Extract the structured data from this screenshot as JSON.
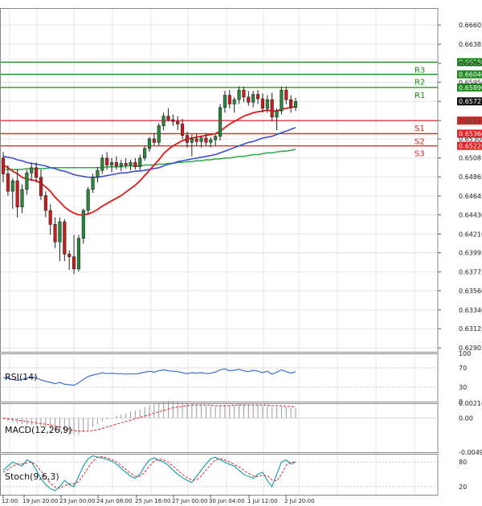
{
  "chart_data": {
    "type": "candlestick",
    "price_axis_ticks": [
      "0.66605",
      "0.66385",
      "0.66165",
      "0.65950",
      "0.65730",
      "0.65510",
      "0.65300",
      "0.65081",
      "0.64865",
      "0.64645",
      "0.64430",
      "0.64210",
      "0.63995",
      "0.63775",
      "0.63560",
      "0.63340",
      "0.63125",
      "0.62905"
    ],
    "ylim": [
      0.6286,
      0.668
    ],
    "time_axis_labels": [
      "12:00",
      "19 Jun 20:00",
      "23 Jun 00:00",
      "24 Jun 08:00",
      "25 Jun 16:00",
      "27 Jun 00:00",
      "30 Jun 04:00",
      "1 Jul 12:00",
      "2 Jul 20:00"
    ],
    "current_price": "0.65727",
    "levels": [
      {
        "name": "R3",
        "price": 0.6618,
        "label": "0.66180",
        "color": "#1a8a1a"
      },
      {
        "name": "R2",
        "price": 0.6604,
        "label": "0.66040",
        "color": "#1a8a1a"
      },
      {
        "name": "R1",
        "price": 0.6589,
        "label": "0.65890",
        "color": "#1a8a1a"
      },
      {
        "name": "S1",
        "price": 0.6551,
        "label": "0.65510",
        "color": "#e02020"
      },
      {
        "name": "S2",
        "price": 0.6536,
        "label": "0.65360",
        "color": "#e02020"
      },
      {
        "name": "S3",
        "price": 0.6522,
        "label": "0.65220",
        "color": "#e02020"
      }
    ],
    "candles": [
      [
        0.6508,
        0.6515,
        0.648,
        0.649
      ],
      [
        0.649,
        0.65,
        0.6465,
        0.647
      ],
      [
        0.647,
        0.6485,
        0.645,
        0.6482
      ],
      [
        0.6482,
        0.6495,
        0.644,
        0.6452
      ],
      [
        0.6452,
        0.6478,
        0.6445,
        0.6472
      ],
      [
        0.6472,
        0.6495,
        0.6466,
        0.6491
      ],
      [
        0.6491,
        0.6503,
        0.6482,
        0.6497
      ],
      [
        0.6497,
        0.6503,
        0.648,
        0.6486
      ],
      [
        0.6486,
        0.6495,
        0.646,
        0.6465
      ],
      [
        0.6465,
        0.647,
        0.644,
        0.6448
      ],
      [
        0.6448,
        0.6455,
        0.642,
        0.6432
      ],
      [
        0.6432,
        0.644,
        0.6405,
        0.6412
      ],
      [
        0.6412,
        0.644,
        0.639,
        0.6435
      ],
      [
        0.6435,
        0.6438,
        0.639,
        0.6398
      ],
      [
        0.6398,
        0.6402,
        0.638,
        0.6395
      ],
      [
        0.6395,
        0.642,
        0.6375,
        0.6381
      ],
      [
        0.6381,
        0.642,
        0.6378,
        0.6416
      ],
      [
        0.6416,
        0.645,
        0.641,
        0.6448
      ],
      [
        0.6448,
        0.6475,
        0.6444,
        0.6472
      ],
      [
        0.6472,
        0.649,
        0.6468,
        0.6486
      ],
      [
        0.6486,
        0.6498,
        0.648,
        0.6494
      ],
      [
        0.6494,
        0.6512,
        0.649,
        0.6508
      ],
      [
        0.6508,
        0.6515,
        0.6495,
        0.65
      ],
      [
        0.65,
        0.6508,
        0.6492,
        0.6503
      ],
      [
        0.6503,
        0.651,
        0.6495,
        0.6499
      ],
      [
        0.6499,
        0.6506,
        0.6493,
        0.6502
      ],
      [
        0.6502,
        0.6508,
        0.6496,
        0.65
      ],
      [
        0.65,
        0.6506,
        0.6494,
        0.6503
      ],
      [
        0.6503,
        0.6508,
        0.6495,
        0.6498
      ],
      [
        0.6498,
        0.6512,
        0.6494,
        0.6508
      ],
      [
        0.6508,
        0.6522,
        0.6505,
        0.6519
      ],
      [
        0.6519,
        0.6532,
        0.6515,
        0.653
      ],
      [
        0.653,
        0.6537,
        0.6522,
        0.6526
      ],
      [
        0.6526,
        0.6548,
        0.6522,
        0.6545
      ],
      [
        0.6545,
        0.656,
        0.654,
        0.6556
      ],
      [
        0.6556,
        0.6565,
        0.655,
        0.6552
      ],
      [
        0.6552,
        0.6558,
        0.6545,
        0.655
      ],
      [
        0.655,
        0.6556,
        0.654,
        0.6547
      ],
      [
        0.6547,
        0.6553,
        0.653,
        0.6534
      ],
      [
        0.6534,
        0.6538,
        0.652,
        0.6526
      ],
      [
        0.6526,
        0.6535,
        0.651,
        0.653
      ],
      [
        0.653,
        0.6536,
        0.6522,
        0.6527
      ],
      [
        0.6527,
        0.6534,
        0.652,
        0.6531
      ],
      [
        0.6531,
        0.6536,
        0.6522,
        0.6526
      ],
      [
        0.6526,
        0.6532,
        0.652,
        0.6529
      ],
      [
        0.6529,
        0.6535,
        0.6522,
        0.6533
      ],
      [
        0.6533,
        0.657,
        0.6528,
        0.6566
      ],
      [
        0.6566,
        0.6585,
        0.656,
        0.658
      ],
      [
        0.658,
        0.6586,
        0.6565,
        0.657
      ],
      [
        0.657,
        0.6578,
        0.656,
        0.6575
      ],
      [
        0.6575,
        0.659,
        0.657,
        0.6586
      ],
      [
        0.6586,
        0.659,
        0.6572,
        0.6578
      ],
      [
        0.6578,
        0.6585,
        0.6568,
        0.6572
      ],
      [
        0.6572,
        0.6585,
        0.6566,
        0.6581
      ],
      [
        0.6581,
        0.6586,
        0.657,
        0.6576
      ],
      [
        0.6576,
        0.6582,
        0.656,
        0.6565
      ],
      [
        0.6565,
        0.658,
        0.656,
        0.6575
      ],
      [
        0.6575,
        0.6583,
        0.655,
        0.6555
      ],
      [
        0.6555,
        0.6565,
        0.654,
        0.6562
      ],
      [
        0.6562,
        0.659,
        0.6558,
        0.6586
      ],
      [
        0.6586,
        0.659,
        0.657,
        0.6575
      ],
      [
        0.6575,
        0.658,
        0.656,
        0.6566
      ],
      [
        0.6566,
        0.6577,
        0.6562,
        0.6573
      ]
    ],
    "ma_red": [
      0.65,
      0.6497,
      0.6493,
      0.649,
      0.6486,
      0.6484,
      0.6483,
      0.6482,
      0.6479,
      0.6475,
      0.647,
      0.6463,
      0.6458,
      0.6452,
      0.6448,
      0.6445,
      0.6443,
      0.6443,
      0.6444,
      0.6446,
      0.6449,
      0.6453,
      0.6456,
      0.6459,
      0.6462,
      0.6465,
      0.6469,
      0.6473,
      0.6477,
      0.6482,
      0.6488,
      0.6494,
      0.65,
      0.6506,
      0.6513,
      0.6518,
      0.6522,
      0.6525,
      0.6528,
      0.653,
      0.6531,
      0.6532,
      0.6533,
      0.6534,
      0.6535,
      0.6536,
      0.6539,
      0.6543,
      0.6547,
      0.655,
      0.6553,
      0.6556,
      0.6558,
      0.656,
      0.6561,
      0.6562,
      0.6563,
      0.6562,
      0.6562,
      0.6564,
      0.6565,
      0.6566,
      0.6567
    ],
    "ma_blue": [
      0.651,
      0.6509,
      0.6508,
      0.6506,
      0.6505,
      0.6503,
      0.6502,
      0.6501,
      0.65,
      0.6499,
      0.6497,
      0.6496,
      0.6494,
      0.6493,
      0.6491,
      0.6489,
      0.6488,
      0.6487,
      0.6486,
      0.6486,
      0.6486,
      0.6487,
      0.6488,
      0.6489,
      0.649,
      0.6491,
      0.6491,
      0.6492,
      0.6493,
      0.6493,
      0.6494,
      0.6495,
      0.6496,
      0.6497,
      0.6499,
      0.6501,
      0.6502,
      0.6504,
      0.6505,
      0.6506,
      0.6507,
      0.6508,
      0.6509,
      0.651,
      0.6511,
      0.6512,
      0.6514,
      0.6516,
      0.6518,
      0.652,
      0.6522,
      0.6524,
      0.6526,
      0.6527,
      0.6529,
      0.6531,
      0.6532,
      0.6533,
      0.6535,
      0.6537,
      0.6539,
      0.6541,
      0.6543
    ],
    "ma_green": [
      0.6495,
      0.6495,
      0.6495,
      0.6495,
      0.6495,
      0.6496,
      0.6496,
      0.6496,
      0.6496,
      0.6496,
      0.6497,
      0.6497,
      0.6497,
      0.6497,
      0.6497,
      0.6497,
      0.6497,
      0.6497,
      0.6497,
      0.6497,
      0.6497,
      0.6497,
      0.6498,
      0.6498,
      0.6498,
      0.6498,
      0.6499,
      0.6499,
      0.6499,
      0.6499,
      0.65,
      0.65,
      0.65,
      0.6501,
      0.6501,
      0.6502,
      0.6502,
      0.6503,
      0.6503,
      0.6504,
      0.6504,
      0.6505,
      0.6505,
      0.6506,
      0.6506,
      0.6507,
      0.6507,
      0.6508,
      0.6508,
      0.6509,
      0.651,
      0.651,
      0.6511,
      0.6512,
      0.6512,
      0.6513,
      0.6514,
      0.6514,
      0.6515,
      0.6516,
      0.6516,
      0.6517,
      0.6518
    ],
    "rsi": {
      "label": "RSI(14)",
      "ticks": [
        "100",
        "70",
        "30",
        "0"
      ],
      "ylim": [
        0,
        100
      ],
      "values": [
        50,
        48,
        46,
        44,
        46,
        49,
        51,
        49,
        45,
        42,
        40,
        37,
        40,
        36,
        35,
        34,
        39,
        46,
        52,
        55,
        57,
        60,
        58,
        59,
        58,
        58,
        57,
        58,
        57,
        59,
        61,
        63,
        61,
        64,
        66,
        64,
        63,
        62,
        60,
        58,
        60,
        59,
        60,
        58,
        59,
        61,
        66,
        68,
        64,
        65,
        67,
        64,
        62,
        65,
        63,
        60,
        63,
        57,
        61,
        66,
        62,
        59,
        62
      ]
    },
    "macd": {
      "label": "MACD(12,26,9)",
      "ticks": [
        "0.002164",
        "0.00",
        "-0.004957"
      ],
      "ylim": [
        -0.004957,
        0.002164
      ],
      "hist": [
        -0.0002,
        -0.0004,
        -0.0006,
        -0.0008,
        -0.0009,
        -0.001,
        -0.001,
        -0.0011,
        -0.0012,
        -0.0014,
        -0.0016,
        -0.0019,
        -0.002,
        -0.0022,
        -0.0024,
        -0.0025,
        -0.0024,
        -0.0021,
        -0.0017,
        -0.0013,
        -0.0009,
        -0.0005,
        -0.0002,
        0.0001,
        0.0003,
        0.0005,
        0.0007,
        0.0009,
        0.0011,
        0.0013,
        0.0016,
        0.0019,
        0.002,
        0.0022,
        0.0024,
        0.0025,
        0.0025,
        0.0025,
        0.0024,
        0.0022,
        0.0021,
        0.002,
        0.0019,
        0.0018,
        0.0018,
        0.0017,
        0.0018,
        0.0019,
        0.0019,
        0.0019,
        0.002,
        0.002,
        0.0019,
        0.0019,
        0.0019,
        0.0018,
        0.0018,
        0.0016,
        0.0016,
        0.0017,
        0.0016,
        0.0015,
        0.0015
      ],
      "signal": [
        0.0,
        -0.0001,
        -0.0002,
        -0.0003,
        -0.0004,
        -0.0005,
        -0.0006,
        -0.0007,
        -0.0008,
        -0.0009,
        -0.001,
        -0.0012,
        -0.0013,
        -0.0015,
        -0.0016,
        -0.0018,
        -0.0019,
        -0.0019,
        -0.0019,
        -0.0018,
        -0.0017,
        -0.0015,
        -0.0013,
        -0.0011,
        -0.0009,
        -0.0007,
        -0.0005,
        -0.0003,
        -0.0001,
        0.0001,
        0.0003,
        0.0005,
        0.0007,
        0.0009,
        0.0011,
        0.0013,
        0.0015,
        0.0016,
        0.0017,
        0.0018,
        0.0019,
        0.0019,
        0.0019,
        0.0019,
        0.0019,
        0.0018,
        0.0018,
        0.0018,
        0.0018,
        0.0019,
        0.0019,
        0.0019,
        0.0019,
        0.0019,
        0.0019,
        0.0019,
        0.0019,
        0.0018,
        0.0018,
        0.0018,
        0.0017,
        0.0017,
        0.0016
      ]
    },
    "stoch": {
      "label": "Stoch(9,6,3)",
      "ticks": [
        "80",
        "20"
      ],
      "ylim": [
        0,
        100
      ],
      "k": [
        60,
        70,
        80,
        75,
        70,
        85,
        80,
        60,
        40,
        25,
        15,
        10,
        20,
        35,
        25,
        20,
        45,
        70,
        88,
        95,
        92,
        90,
        86,
        82,
        75,
        65,
        55,
        45,
        40,
        50,
        70,
        85,
        90,
        84,
        80,
        72,
        60,
        50,
        42,
        35,
        30,
        45,
        60,
        75,
        88,
        92,
        85,
        80,
        74,
        70,
        60,
        50,
        45,
        40,
        50,
        55,
        35,
        20,
        50,
        80,
        85,
        75,
        80
      ],
      "d": [
        55,
        62,
        70,
        75,
        75,
        78,
        80,
        72,
        58,
        42,
        28,
        18,
        16,
        22,
        27,
        27,
        32,
        48,
        66,
        82,
        92,
        93,
        90,
        86,
        80,
        72,
        62,
        52,
        45,
        45,
        55,
        70,
        82,
        87,
        85,
        79,
        70,
        60,
        50,
        42,
        36,
        36,
        46,
        60,
        74,
        85,
        88,
        85,
        80,
        74,
        68,
        60,
        52,
        46,
        44,
        48,
        46,
        36,
        34,
        50,
        72,
        80,
        80
      ]
    }
  }
}
